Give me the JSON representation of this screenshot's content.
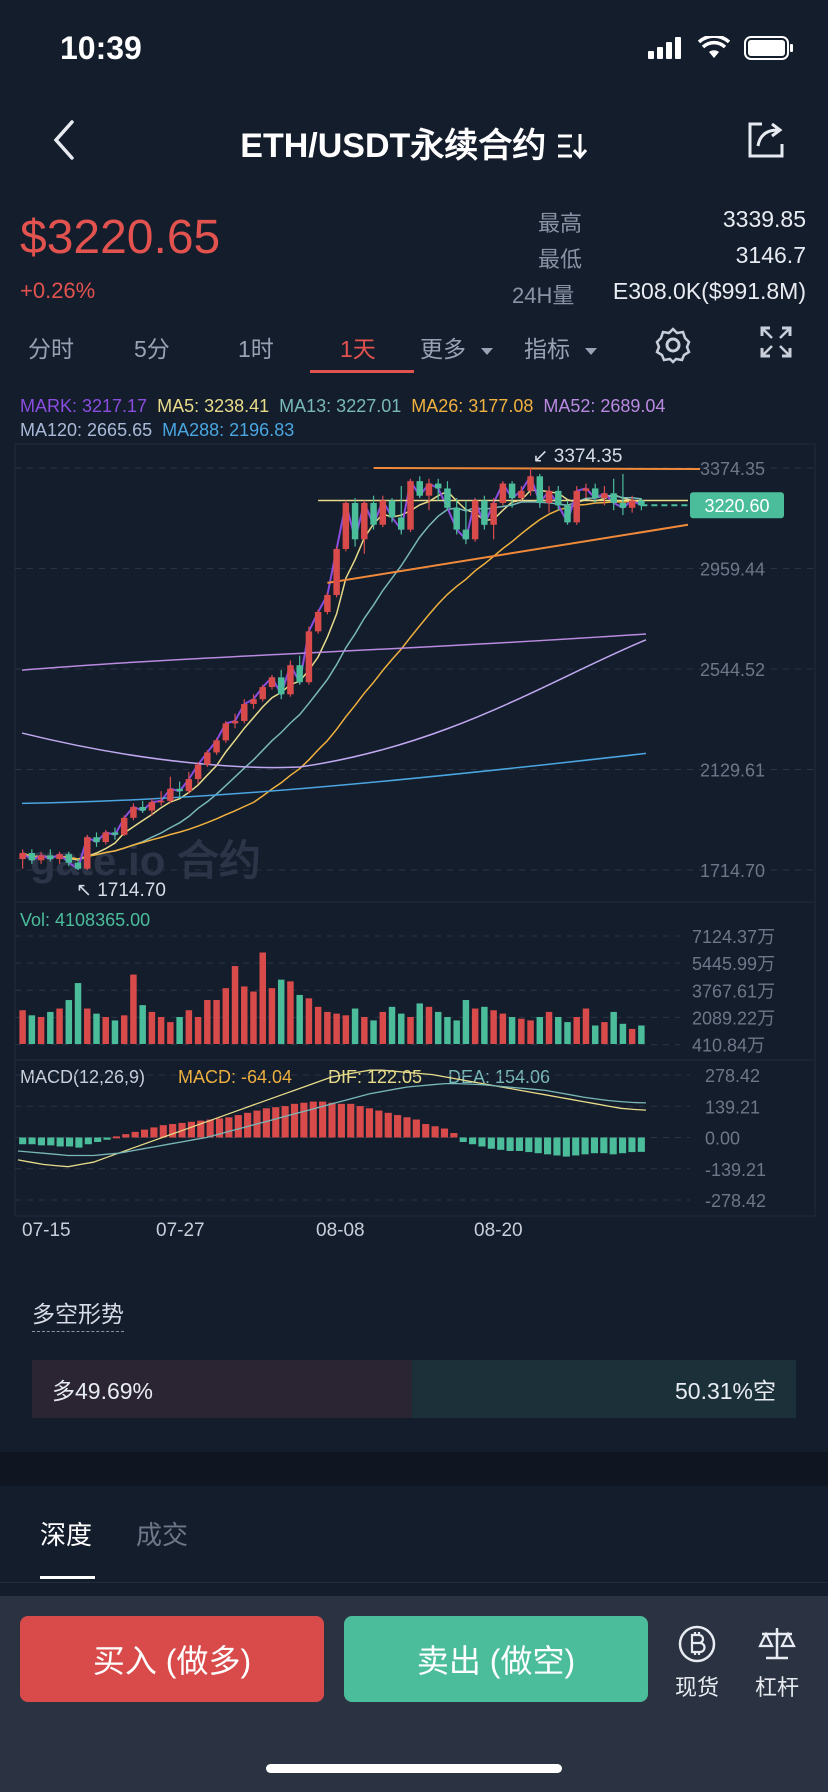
{
  "status_bar": {
    "time": "10:39",
    "icons": [
      "signal-icon",
      "wifi-icon",
      "battery-icon"
    ]
  },
  "nav": {
    "title": "ETH/USDT永续合约",
    "title_icon": "switch-icon",
    "back_icon": "back-icon",
    "share_icon": "share-icon"
  },
  "ticker": {
    "last_price": "$3220.65",
    "change_pct": "+0.26%",
    "high_label": "最高",
    "high": "3339.85",
    "low_label": "最低",
    "low": "3146.7",
    "vol_label": "24H量",
    "vol": "E308.0K($991.8M)"
  },
  "timeframes": {
    "items": [
      "分时",
      "5分",
      "1时",
      "1天",
      "更多",
      "指标"
    ],
    "active": "1天",
    "settings_icon": "gear-icon",
    "fullscreen_icon": "expand-icon"
  },
  "ma_legend": {
    "line1": [
      {
        "label": "MARK: 3217.17",
        "color": "#8a4de0"
      },
      {
        "label": "MA5: 3238.41",
        "color": "#e8dc8a"
      },
      {
        "label": "MA13: 3227.01",
        "color": "#79b8b8"
      },
      {
        "label": "MA26: 3177.08",
        "color": "#f0b13f"
      },
      {
        "label": "MA52: 2689.04",
        "color": "#b98ae0"
      }
    ],
    "line2": [
      {
        "label": "MA120: 2665.65",
        "color": "#a9b9d8"
      },
      {
        "label": "MA288: 2196.83",
        "color": "#4aa6e0"
      }
    ]
  },
  "chart_data": {
    "type": "candlestick",
    "price_axis_ticks": [
      "3374.35",
      "2959.44",
      "2544.52",
      "2129.61",
      "1714.70"
    ],
    "price_range": [
      1714.7,
      3374.35
    ],
    "max_marker": "3374.35",
    "min_marker": "1714.70",
    "current_price_tag": "3220.60",
    "watermark": "gate.io 合约",
    "candles": [
      {
        "o": 1760,
        "h": 1800,
        "l": 1720,
        "c": 1785
      },
      {
        "o": 1785,
        "h": 1800,
        "l": 1740,
        "c": 1755
      },
      {
        "o": 1755,
        "h": 1790,
        "l": 1740,
        "c": 1775
      },
      {
        "o": 1775,
        "h": 1800,
        "l": 1750,
        "c": 1760
      },
      {
        "o": 1760,
        "h": 1790,
        "l": 1740,
        "c": 1780
      },
      {
        "o": 1780,
        "h": 1790,
        "l": 1730,
        "c": 1745
      },
      {
        "o": 1745,
        "h": 1760,
        "l": 1714.7,
        "c": 1720
      },
      {
        "o": 1720,
        "h": 1860,
        "l": 1714.7,
        "c": 1850
      },
      {
        "o": 1850,
        "h": 1870,
        "l": 1810,
        "c": 1830
      },
      {
        "o": 1830,
        "h": 1880,
        "l": 1820,
        "c": 1870
      },
      {
        "o": 1870,
        "h": 1890,
        "l": 1840,
        "c": 1860
      },
      {
        "o": 1860,
        "h": 1940,
        "l": 1855,
        "c": 1930
      },
      {
        "o": 1930,
        "h": 1990,
        "l": 1920,
        "c": 1975
      },
      {
        "o": 1975,
        "h": 2000,
        "l": 1950,
        "c": 1960
      },
      {
        "o": 1960,
        "h": 2010,
        "l": 1940,
        "c": 1995
      },
      {
        "o": 1995,
        "h": 2040,
        "l": 1980,
        "c": 2000
      },
      {
        "o": 2000,
        "h": 2100,
        "l": 1990,
        "c": 2050
      },
      {
        "o": 2050,
        "h": 2080,
        "l": 2010,
        "c": 2040
      },
      {
        "o": 2040,
        "h": 2120,
        "l": 2030,
        "c": 2090
      },
      {
        "o": 2090,
        "h": 2160,
        "l": 2070,
        "c": 2150
      },
      {
        "o": 2150,
        "h": 2210,
        "l": 2140,
        "c": 2200
      },
      {
        "o": 2200,
        "h": 2260,
        "l": 2190,
        "c": 2250
      },
      {
        "o": 2250,
        "h": 2330,
        "l": 2240,
        "c": 2320
      },
      {
        "o": 2320,
        "h": 2360,
        "l": 2300,
        "c": 2330
      },
      {
        "o": 2330,
        "h": 2420,
        "l": 2320,
        "c": 2400
      },
      {
        "o": 2400,
        "h": 2440,
        "l": 2380,
        "c": 2420
      },
      {
        "o": 2420,
        "h": 2480,
        "l": 2410,
        "c": 2470
      },
      {
        "o": 2470,
        "h": 2520,
        "l": 2460,
        "c": 2510
      },
      {
        "o": 2510,
        "h": 2540,
        "l": 2420,
        "c": 2440
      },
      {
        "o": 2440,
        "h": 2580,
        "l": 2430,
        "c": 2560
      },
      {
        "o": 2560,
        "h": 2600,
        "l": 2480,
        "c": 2490
      },
      {
        "o": 2490,
        "h": 2720,
        "l": 2480,
        "c": 2700
      },
      {
        "o": 2700,
        "h": 2790,
        "l": 2690,
        "c": 2780
      },
      {
        "o": 2780,
        "h": 2860,
        "l": 2770,
        "c": 2850
      },
      {
        "o": 2850,
        "h": 3050,
        "l": 2840,
        "c": 3040
      },
      {
        "o": 3040,
        "h": 3240,
        "l": 3030,
        "c": 3230
      },
      {
        "o": 3230,
        "h": 3250,
        "l": 3050,
        "c": 3080
      },
      {
        "o": 3080,
        "h": 3240,
        "l": 3020,
        "c": 3230
      },
      {
        "o": 3230,
        "h": 3260,
        "l": 3120,
        "c": 3140
      },
      {
        "o": 3140,
        "h": 3260,
        "l": 3130,
        "c": 3240
      },
      {
        "o": 3240,
        "h": 3250,
        "l": 3150,
        "c": 3170
      },
      {
        "o": 3170,
        "h": 3300,
        "l": 3100,
        "c": 3120
      },
      {
        "o": 3120,
        "h": 3330,
        "l": 3110,
        "c": 3320
      },
      {
        "o": 3320,
        "h": 3340,
        "l": 3250,
        "c": 3260
      },
      {
        "o": 3260,
        "h": 3330,
        "l": 3200,
        "c": 3310
      },
      {
        "o": 3310,
        "h": 3330,
        "l": 3240,
        "c": 3290
      },
      {
        "o": 3290,
        "h": 3320,
        "l": 3200,
        "c": 3210
      },
      {
        "o": 3210,
        "h": 3250,
        "l": 3100,
        "c": 3120
      },
      {
        "o": 3120,
        "h": 3240,
        "l": 3060,
        "c": 3080
      },
      {
        "o": 3080,
        "h": 3250,
        "l": 3070,
        "c": 3240
      },
      {
        "o": 3240,
        "h": 3260,
        "l": 3120,
        "c": 3140
      },
      {
        "o": 3140,
        "h": 3250,
        "l": 3080,
        "c": 3230
      },
      {
        "o": 3230,
        "h": 3320,
        "l": 3220,
        "c": 3310
      },
      {
        "o": 3310,
        "h": 3320,
        "l": 3210,
        "c": 3250
      },
      {
        "o": 3250,
        "h": 3300,
        "l": 3240,
        "c": 3280
      },
      {
        "o": 3280,
        "h": 3374.35,
        "l": 3260,
        "c": 3340
      },
      {
        "o": 3340,
        "h": 3350,
        "l": 3210,
        "c": 3230
      },
      {
        "o": 3230,
        "h": 3300,
        "l": 3190,
        "c": 3280
      },
      {
        "o": 3280,
        "h": 3300,
        "l": 3200,
        "c": 3220
      },
      {
        "o": 3220,
        "h": 3240,
        "l": 3140,
        "c": 3150
      },
      {
        "o": 3150,
        "h": 3300,
        "l": 3140,
        "c": 3280
      },
      {
        "o": 3280,
        "h": 3310,
        "l": 3250,
        "c": 3290
      },
      {
        "o": 3290,
        "h": 3310,
        "l": 3230,
        "c": 3250
      },
      {
        "o": 3250,
        "h": 3300,
        "l": 3220,
        "c": 3270
      },
      {
        "o": 3270,
        "h": 3330,
        "l": 3200,
        "c": 3230
      },
      {
        "o": 3230,
        "h": 3350,
        "l": 3180,
        "c": 3210
      },
      {
        "o": 3210,
        "h": 3260,
        "l": 3190,
        "c": 3240
      },
      {
        "o": 3240,
        "h": 3250,
        "l": 3200,
        "c": 3220
      }
    ],
    "volume": {
      "label": "Vol: 4108365.00",
      "ticks": [
        "7124.37万",
        "5445.99万",
        "3767.61万",
        "2089.22万",
        "410.84万"
      ],
      "range": [
        410.84,
        7124.37
      ],
      "values": [
        2400,
        2100,
        2000,
        2300,
        2500,
        3000,
        4000,
        2500,
        2200,
        2000,
        1800,
        2100,
        4500,
        2700,
        2300,
        2000,
        1700,
        2000,
        2400,
        2000,
        3000,
        3000,
        3700,
        5000,
        3800,
        3500,
        5800,
        3700,
        4200,
        4100,
        3300,
        3100,
        2600,
        2300,
        2200,
        2100,
        2500,
        2000,
        1800,
        2300,
        2600,
        2200,
        2000,
        2800,
        2600,
        2300,
        2000,
        1800,
        3000,
        2500,
        2600,
        2400,
        2200,
        2000,
        1900,
        1800,
        2000,
        2300,
        2000,
        1700,
        2000,
        2500,
        1500,
        1700,
        2300,
        1600,
        1300,
        1500
      ]
    },
    "macd": {
      "label": "MACD(12,26,9)",
      "macd_text": "MACD: -64.04",
      "dif_text": "DIF: 122.05",
      "dea_text": "DEA: 154.06",
      "ticks": [
        "278.42",
        "139.21",
        "0.00",
        "-139.21",
        "-278.42"
      ],
      "range": [
        -278.42,
        278.42
      ],
      "hist": [
        -30,
        -30,
        -35,
        -35,
        -40,
        -40,
        -45,
        -30,
        -20,
        -10,
        5,
        15,
        25,
        35,
        45,
        55,
        60,
        65,
        70,
        75,
        80,
        85,
        90,
        100,
        110,
        120,
        130,
        135,
        140,
        150,
        155,
        160,
        160,
        155,
        150,
        150,
        140,
        130,
        120,
        110,
        100,
        90,
        80,
        60,
        50,
        40,
        20,
        -20,
        -30,
        -40,
        -50,
        -55,
        -60,
        -60,
        -65,
        -70,
        -75,
        -80,
        -85,
        -80,
        -75,
        -70,
        -70,
        -75,
        -70,
        -65,
        -64
      ],
      "dif": [
        -100,
        -110,
        -120,
        -125,
        -130,
        -120,
        -110,
        -90,
        -70,
        -50,
        -30,
        -10,
        10,
        30,
        50,
        70,
        90,
        110,
        130,
        150,
        170,
        190,
        210,
        230,
        250,
        270,
        280,
        290,
        300,
        300,
        295,
        290,
        285,
        280,
        270,
        260,
        250,
        240,
        230,
        220,
        210,
        200,
        190,
        180,
        170,
        160,
        150,
        140,
        130,
        125,
        122
      ],
      "dea": [
        -60,
        -65,
        -70,
        -75,
        -80,
        -80,
        -80,
        -75,
        -70,
        -60,
        -50,
        -40,
        -30,
        -20,
        -10,
        0,
        15,
        30,
        45,
        60,
        75,
        90,
        105,
        120,
        135,
        150,
        165,
        180,
        195,
        205,
        215,
        225,
        230,
        235,
        240,
        240,
        238,
        235,
        230,
        225,
        220,
        215,
        210,
        200,
        190,
        180,
        172,
        165,
        160,
        156,
        154
      ]
    },
    "x_axis_ticks": [
      "07-15",
      "07-27",
      "08-08",
      "08-20"
    ]
  },
  "sentiment": {
    "title": "多空形势",
    "long_text": "多49.69%",
    "short_text": "50.31%空",
    "long_pct": 49.69
  },
  "bottom_tabs": {
    "depth": "深度",
    "trades": "成交"
  },
  "actions": {
    "buy": "买入 (做多)",
    "sell": "卖出 (做空)",
    "spot": "现货",
    "leverage": "杠杆"
  },
  "colors": {
    "up": "#d94b4b",
    "down": "#4bbd9b",
    "background": "#141d2c"
  }
}
